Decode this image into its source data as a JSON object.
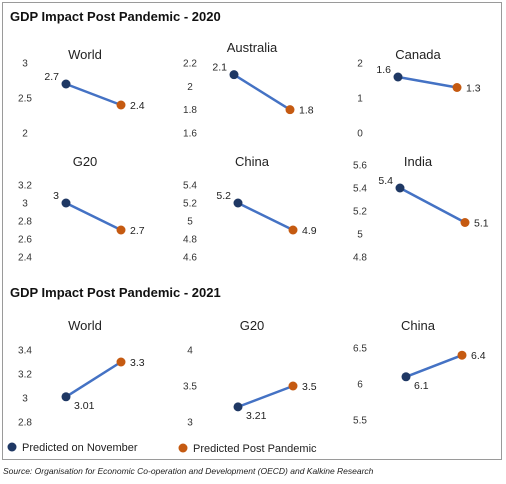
{
  "section_titles": [
    "GDP Impact Post Pandemic - 2020",
    "GDP Impact Post Pandemic - 2021"
  ],
  "legend": [
    {
      "label": "Predicted on November",
      "color": "#1f3864"
    },
    {
      "label": "Predicted Post Pandemic",
      "color": "#c55a11"
    }
  ],
  "line_color": "#4472c4",
  "source": "Source: Organisation for Economic Co-operation and Development (OECD) and Kalkine Research",
  "chart_data": [
    {
      "type": "line",
      "section": 0,
      "title": "World",
      "ticks": [
        "3",
        "2.5",
        "2"
      ],
      "ylim": [
        2,
        3
      ],
      "values": [
        2.7,
        2.4
      ],
      "labels": [
        "2.7",
        "2.4"
      ]
    },
    {
      "type": "line",
      "section": 0,
      "title": "Australia",
      "ticks": [
        "2.2",
        "2",
        "1.8",
        "1.6"
      ],
      "ylim": [
        1.6,
        2.2
      ],
      "values": [
        2.1,
        1.8
      ],
      "labels": [
        "2.1",
        "1.8"
      ]
    },
    {
      "type": "line",
      "section": 0,
      "title": "Canada",
      "ticks": [
        "2",
        "1",
        "0"
      ],
      "ylim": [
        0,
        2
      ],
      "values": [
        1.6,
        1.3
      ],
      "labels": [
        "1.6",
        "1.3"
      ]
    },
    {
      "type": "line",
      "section": 0,
      "title": "G20",
      "ticks": [
        "3.2",
        "3",
        "2.8",
        "2.6",
        "2.4"
      ],
      "ylim": [
        2.4,
        3.2
      ],
      "values": [
        3,
        2.7
      ],
      "labels": [
        "3",
        "2.7"
      ]
    },
    {
      "type": "line",
      "section": 0,
      "title": "China",
      "ticks": [
        "5.4",
        "5.2",
        "5",
        "4.8",
        "4.6"
      ],
      "ylim": [
        4.6,
        5.4
      ],
      "values": [
        5.2,
        4.9
      ],
      "labels": [
        "5.2",
        "4.9"
      ]
    },
    {
      "type": "line",
      "section": 0,
      "title": "India",
      "ticks": [
        "5.6",
        "5.4",
        "5.2",
        "5",
        "4.8"
      ],
      "ylim": [
        4.8,
        5.6
      ],
      "values": [
        5.4,
        5.1
      ],
      "labels": [
        "5.4",
        "5.1"
      ]
    },
    {
      "type": "line",
      "section": 1,
      "title": "World",
      "ticks": [
        "3.4",
        "3.2",
        "3",
        "2.8"
      ],
      "ylim": [
        2.8,
        3.4
      ],
      "values": [
        3.01,
        3.3
      ],
      "labels": [
        "3.01",
        "3.3"
      ]
    },
    {
      "type": "line",
      "section": 1,
      "title": "G20",
      "ticks": [
        "4",
        "3.5",
        "3"
      ],
      "ylim": [
        3,
        4
      ],
      "values": [
        3.21,
        3.5
      ],
      "labels": [
        "3.21",
        "3.5"
      ]
    },
    {
      "type": "line",
      "section": 1,
      "title": "China",
      "ticks": [
        "6.5",
        "6",
        "5.5"
      ],
      "ylim": [
        5.5,
        6.5
      ],
      "values": [
        6.1,
        6.4
      ],
      "labels": [
        "6.1",
        "6.4"
      ]
    }
  ]
}
